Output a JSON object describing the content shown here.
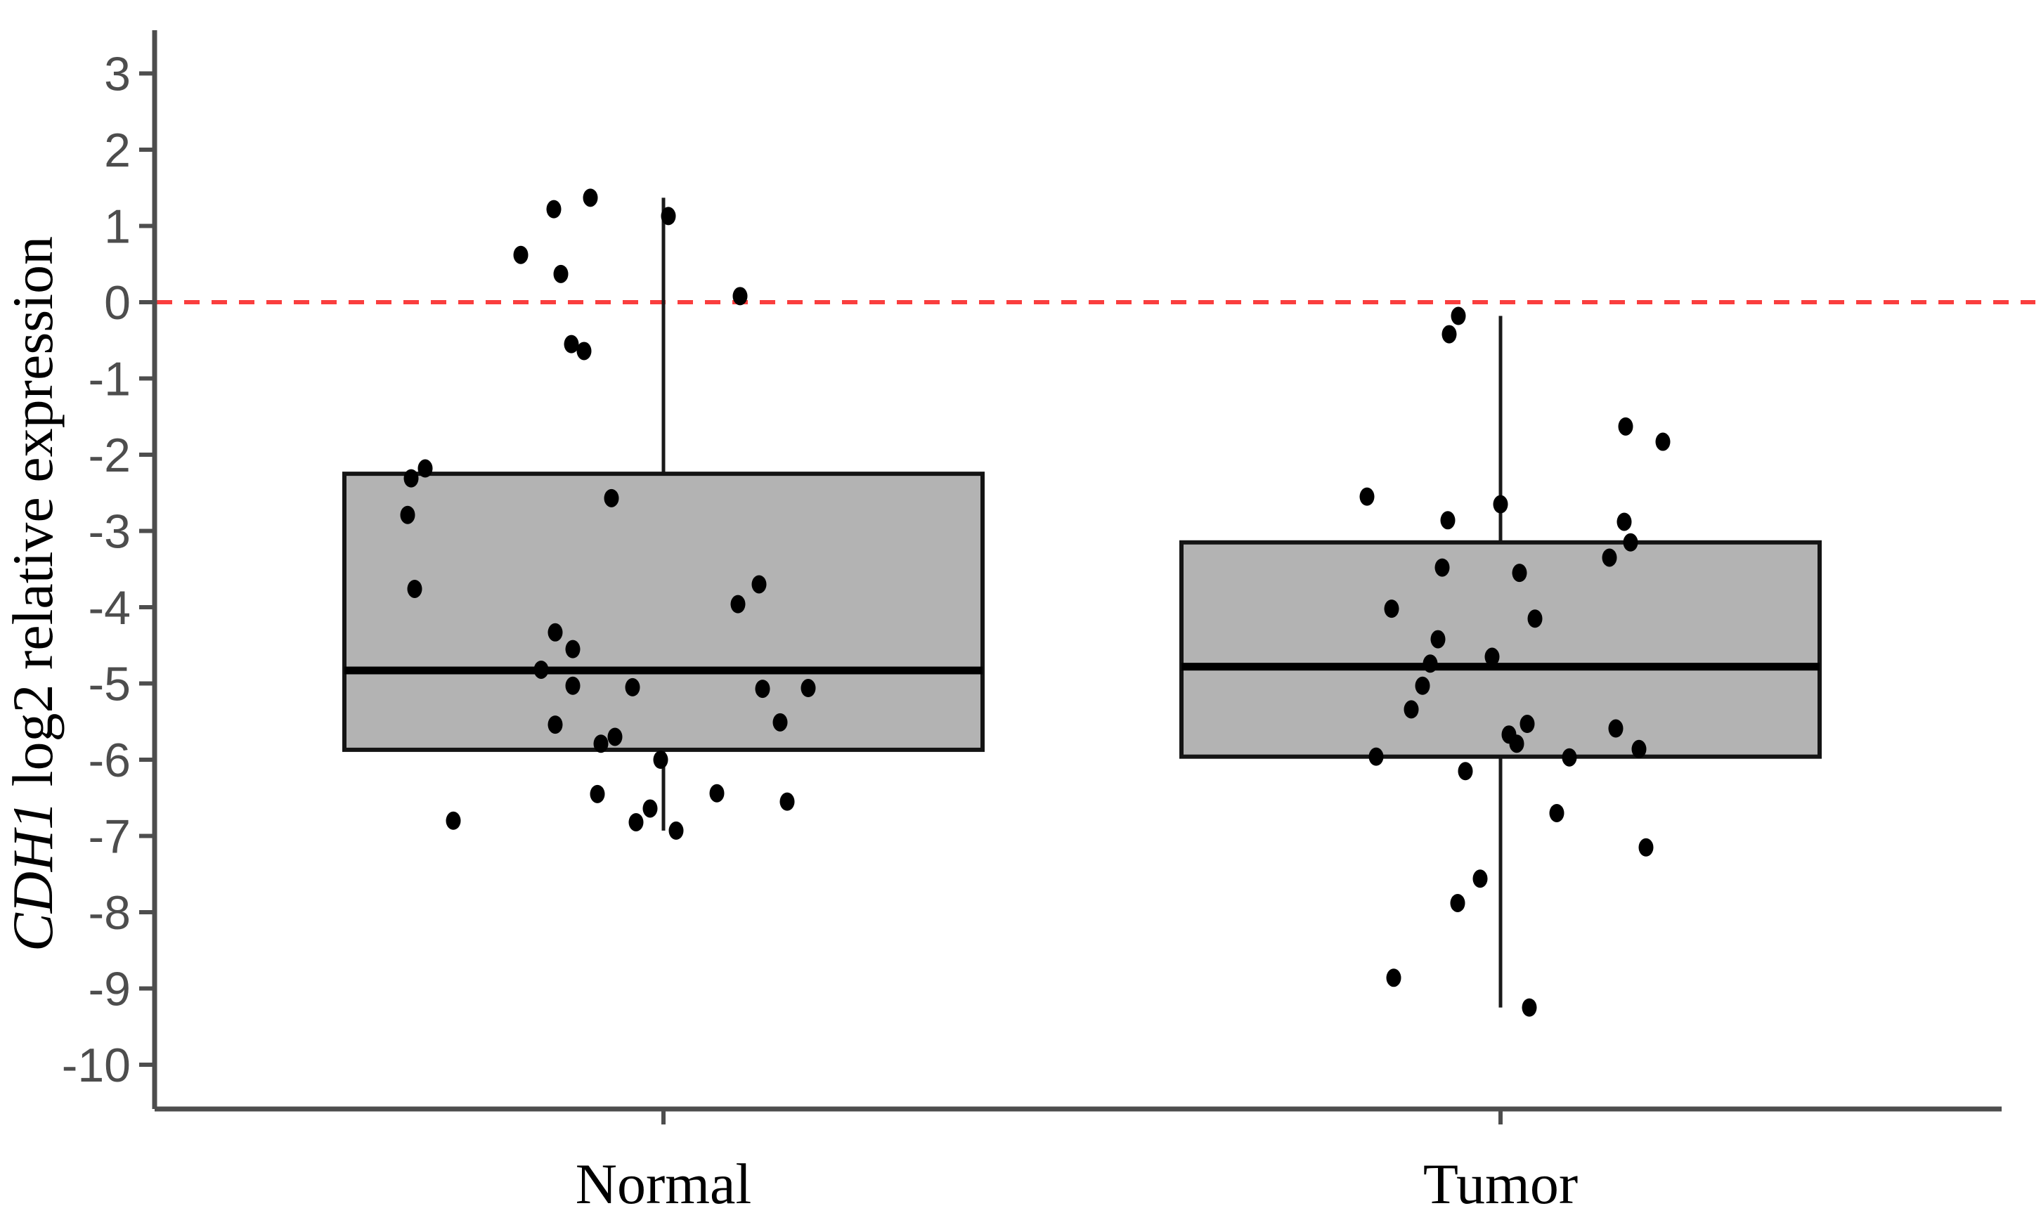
{
  "chart_data": {
    "type": "boxplot",
    "title": "",
    "xlabel": "",
    "ylabel_italic": "CDH1",
    "ylabel_rest": " log2 relative expression",
    "categories": [
      "Normal",
      "Tumor"
    ],
    "y_ticks": [
      3,
      2,
      1,
      0,
      -1,
      -2,
      -3,
      -4,
      -5,
      -6,
      -7,
      -8,
      -9,
      -10
    ],
    "ylim": [
      -10.6,
      3.6
    ],
    "grid": false,
    "legend": "none",
    "reference_line": {
      "y": 0,
      "style": "dashed",
      "color": "#fa3e3e"
    },
    "series": [
      {
        "name": "Normal",
        "box": {
          "q1": -5.87,
          "median": -4.83,
          "q3": -2.25,
          "whisker_low": -6.93,
          "whisker_high": 1.37
        },
        "points": [
          [
            1.37,
            -104
          ],
          [
            1.22,
            -156
          ],
          [
            1.13,
            7
          ],
          [
            0.62,
            -203
          ],
          [
            0.37,
            -146
          ],
          [
            0.08,
            109
          ],
          [
            -0.55,
            -131
          ],
          [
            -0.64,
            -113
          ],
          [
            -2.18,
            -339
          ],
          [
            -2.31,
            -359
          ],
          [
            -2.57,
            -74
          ],
          [
            -2.79,
            -364
          ],
          [
            -3.76,
            -354
          ],
          [
            -3.7,
            136
          ],
          [
            -3.96,
            106
          ],
          [
            -4.33,
            -154
          ],
          [
            -4.55,
            -129
          ],
          [
            -4.82,
            -174
          ],
          [
            -5.03,
            -129
          ],
          [
            -5.05,
            -44
          ],
          [
            -5.07,
            141
          ],
          [
            -5.06,
            206
          ],
          [
            -5.54,
            -154
          ],
          [
            -5.51,
            166
          ],
          [
            -5.7,
            -69
          ],
          [
            -5.79,
            -89
          ],
          [
            -6.0,
            -4
          ],
          [
            -6.45,
            -94
          ],
          [
            -6.44,
            76
          ],
          [
            -6.55,
            176
          ],
          [
            -6.64,
            -19
          ],
          [
            -6.82,
            -39
          ],
          [
            -6.93,
            18
          ],
          [
            -6.8,
            -299
          ]
        ]
      },
      {
        "name": "Tumor",
        "box": {
          "q1": -5.96,
          "median": -4.78,
          "q3": -3.15,
          "whisker_low": -9.25,
          "whisker_high": -0.18
        },
        "points": [
          [
            -0.18,
            -60
          ],
          [
            -0.42,
            -73
          ],
          [
            -1.63,
            178
          ],
          [
            -1.83,
            231
          ],
          [
            -2.55,
            -190
          ],
          [
            -2.65,
            0
          ],
          [
            -2.88,
            176
          ],
          [
            -2.86,
            -75
          ],
          [
            -3.15,
            185
          ],
          [
            -3.35,
            155
          ],
          [
            -3.48,
            -83
          ],
          [
            -3.55,
            27
          ],
          [
            -4.02,
            -155
          ],
          [
            -4.15,
            49
          ],
          [
            -4.42,
            -89
          ],
          [
            -4.65,
            -12
          ],
          [
            -4.74,
            -100
          ],
          [
            -5.03,
            -111
          ],
          [
            -5.34,
            -127
          ],
          [
            -5.53,
            38
          ],
          [
            -5.67,
            12
          ],
          [
            -5.79,
            23
          ],
          [
            -5.59,
            164
          ],
          [
            -5.86,
            197
          ],
          [
            -5.96,
            -177
          ],
          [
            -5.97,
            98
          ],
          [
            -6.15,
            -50
          ],
          [
            -6.7,
            80
          ],
          [
            -7.15,
            207
          ],
          [
            -7.56,
            -29
          ],
          [
            -7.88,
            -61
          ],
          [
            -8.86,
            -152
          ],
          [
            -9.25,
            41
          ]
        ]
      }
    ],
    "colors": {
      "box_fill": "#b3b3b3",
      "box_stroke": "#141414",
      "median": "#000000",
      "whisker": "#1a1a1a",
      "point": "#000000",
      "axis": "#4d4d4d",
      "tick_text": "#4d4d4d",
      "label_text": "#000000",
      "reference": "#fa3e3e",
      "background": "#ffffff"
    }
  }
}
